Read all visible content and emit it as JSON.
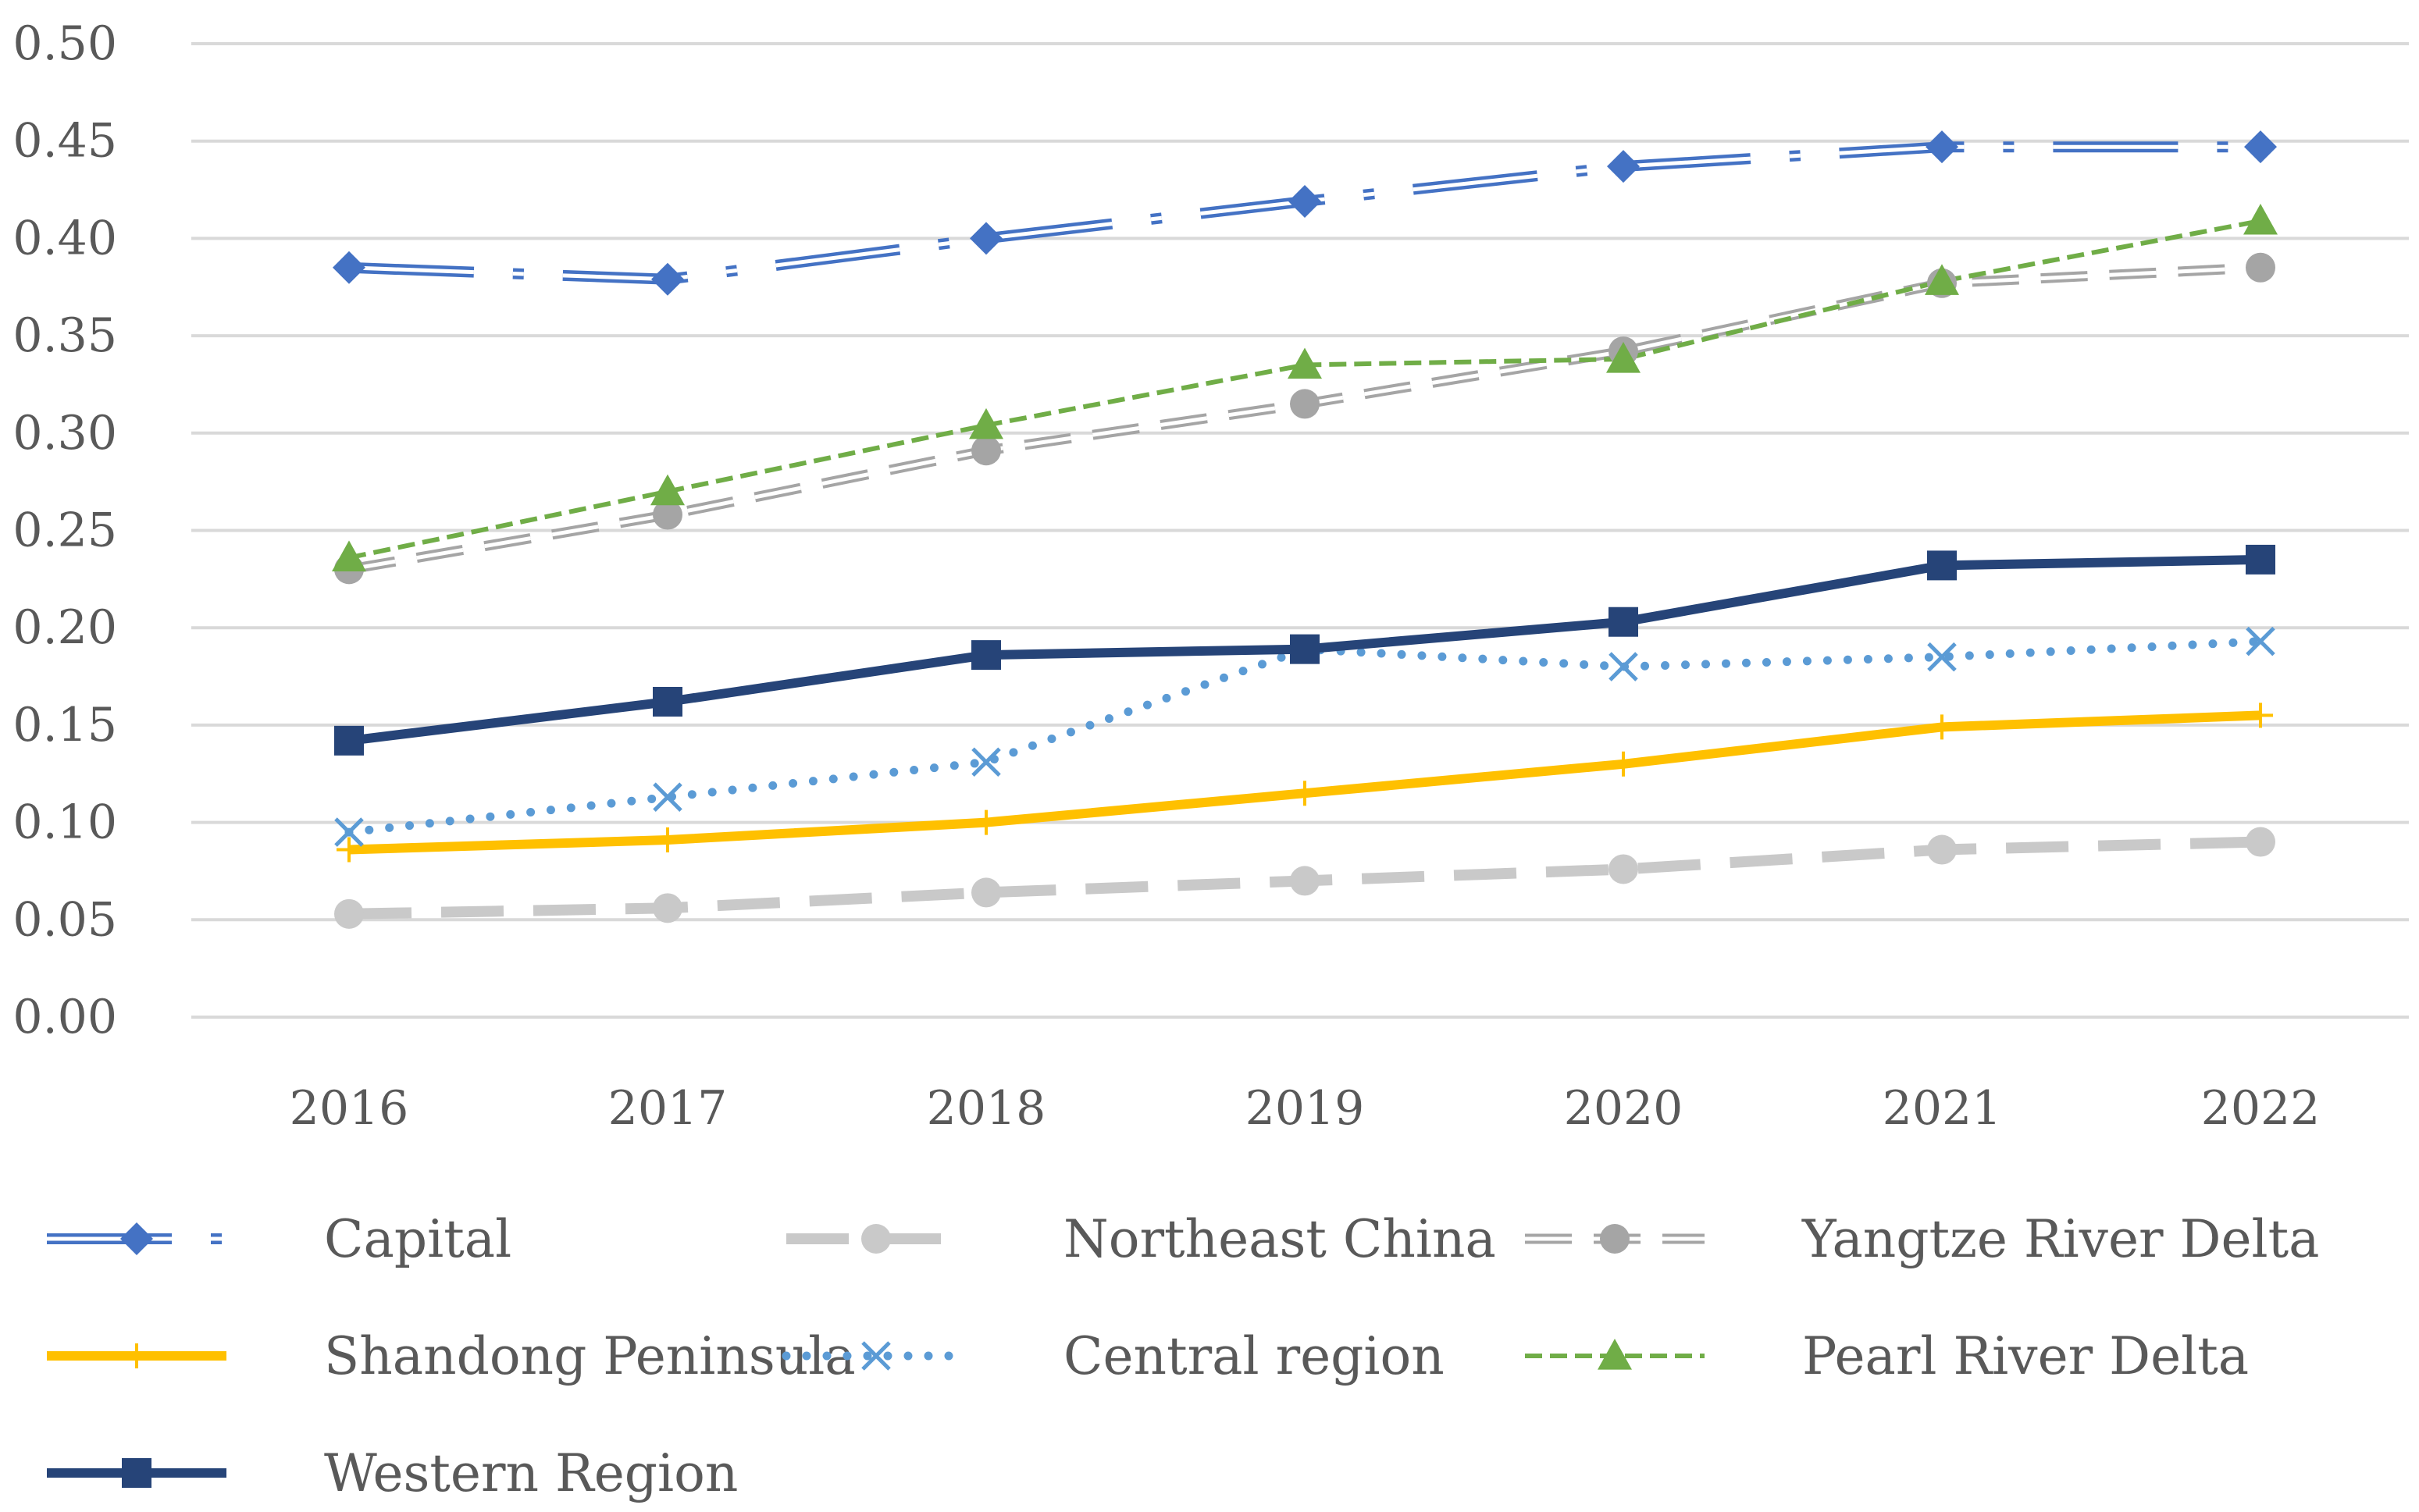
{
  "chart_data": {
    "type": "line",
    "title": "",
    "xlabel": "",
    "ylabel": "",
    "categories": [
      "2016",
      "2017",
      "2018",
      "2019",
      "2020",
      "2021",
      "2022"
    ],
    "ylim": [
      0,
      0.5
    ],
    "yticks": [
      "0.00",
      "0.05",
      "0.10",
      "0.15",
      "0.20",
      "0.25",
      "0.30",
      "0.35",
      "0.40",
      "0.45",
      "0.50"
    ],
    "grid": true,
    "legend_position": "bottom",
    "series": [
      {
        "name": "Capital",
        "values": [
          0.385,
          0.379,
          0.4,
          0.419,
          0.437,
          0.447,
          0.447
        ],
        "color": "#4472C4",
        "marker": "diamond",
        "line": "dash-dot-double"
      },
      {
        "name": "Northeast China",
        "values": [
          0.053,
          0.056,
          0.064,
          0.07,
          0.076,
          0.086,
          0.09
        ],
        "color": "#C9C9C9",
        "marker": "circle",
        "line": "long-dash"
      },
      {
        "name": "Yangtze River Delta",
        "values": [
          0.23,
          0.258,
          0.291,
          0.315,
          0.342,
          0.377,
          0.385
        ],
        "color": "#A5A5A5",
        "marker": "circle",
        "line": "dash-double"
      },
      {
        "name": "Shandong Peninsula",
        "values": [
          0.086,
          0.091,
          0.1,
          0.115,
          0.13,
          0.149,
          0.155
        ],
        "color": "#FFC000",
        "marker": "plus",
        "line": "solid"
      },
      {
        "name": "Central region",
        "values": [
          0.095,
          0.113,
          0.131,
          0.189,
          0.18,
          0.185,
          0.193
        ],
        "color": "#5B9BD5",
        "marker": "x",
        "line": "dotted"
      },
      {
        "name": "Pearl River Delta",
        "values": [
          0.236,
          0.27,
          0.304,
          0.335,
          0.338,
          0.378,
          0.409
        ],
        "color": "#70AD47",
        "marker": "triangle",
        "line": "short-dash"
      },
      {
        "name": "Western Region",
        "values": [
          0.142,
          0.162,
          0.186,
          0.189,
          0.203,
          0.232,
          0.235
        ],
        "color": "#264478",
        "marker": "square",
        "line": "solid-thick"
      }
    ]
  }
}
